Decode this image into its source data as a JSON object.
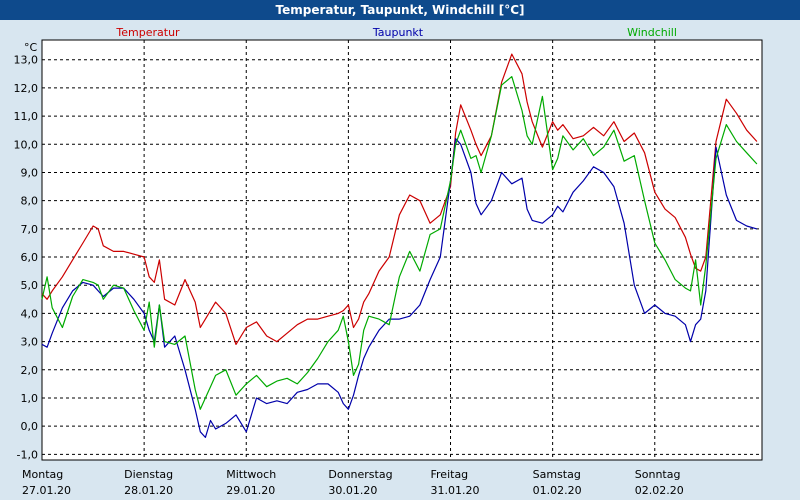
{
  "window": {
    "title": "Temperatur, Taupunkt, Windchill [°C]"
  },
  "chart_data": {
    "type": "line",
    "title": "Temperatur, Taupunkt, Windchill [°C]",
    "ylabel": "°C",
    "ylim": [
      -1.2,
      13.7
    ],
    "xlim": [
      0,
      7.05
    ],
    "grid": true,
    "legend_position": "top",
    "y_ticks": [
      "-1,0",
      "0,0",
      "1,0",
      "2,0",
      "3,0",
      "4,0",
      "5,0",
      "6,0",
      "7,0",
      "8,0",
      "9,0",
      "10,0",
      "11,0",
      "12,0",
      "13,0"
    ],
    "x_ticks": [
      {
        "day": "Montag",
        "date": "27.01.20"
      },
      {
        "day": "Dienstag",
        "date": "28.01.20"
      },
      {
        "day": "Mittwoch",
        "date": "29.01.20"
      },
      {
        "day": "Donnerstag",
        "date": "30.01.20"
      },
      {
        "day": "Freitag",
        "date": "31.01.20"
      },
      {
        "day": "Samstag",
        "date": "01.02.20"
      },
      {
        "day": "Sonntag",
        "date": "02.02.20"
      }
    ],
    "series": [
      {
        "name": "Temperatur",
        "color": "#cc0000",
        "x": [
          0.0,
          0.05,
          0.1,
          0.2,
          0.3,
          0.4,
          0.5,
          0.55,
          0.6,
          0.7,
          0.8,
          0.9,
          1.0,
          1.05,
          1.1,
          1.15,
          1.2,
          1.3,
          1.4,
          1.5,
          1.55,
          1.6,
          1.65,
          1.7,
          1.8,
          1.9,
          2.0,
          2.1,
          2.2,
          2.3,
          2.4,
          2.5,
          2.6,
          2.7,
          2.8,
          2.9,
          2.95,
          3.0,
          3.05,
          3.1,
          3.15,
          3.2,
          3.3,
          3.4,
          3.5,
          3.6,
          3.7,
          3.8,
          3.9,
          4.0,
          4.05,
          4.1,
          4.2,
          4.25,
          4.3,
          4.4,
          4.5,
          4.6,
          4.7,
          4.75,
          4.8,
          4.9,
          5.0,
          5.05,
          5.1,
          5.2,
          5.3,
          5.4,
          5.5,
          5.6,
          5.7,
          5.8,
          5.9,
          6.0,
          6.1,
          6.2,
          6.3,
          6.35,
          6.4,
          6.45,
          6.5,
          6.6,
          6.7,
          6.8,
          6.9,
          7.0
        ],
        "y": [
          4.7,
          4.5,
          4.8,
          5.3,
          5.9,
          6.5,
          7.1,
          7.0,
          6.4,
          6.2,
          6.2,
          6.1,
          6.0,
          5.3,
          5.1,
          5.9,
          4.5,
          4.3,
          5.2,
          4.4,
          3.5,
          3.8,
          4.1,
          4.4,
          4.0,
          2.9,
          3.5,
          3.7,
          3.2,
          3.0,
          3.3,
          3.6,
          3.8,
          3.8,
          3.9,
          4.0,
          4.1,
          4.3,
          3.5,
          3.8,
          4.4,
          4.7,
          5.5,
          6.0,
          7.5,
          8.2,
          8.0,
          7.2,
          7.5,
          8.5,
          10.4,
          11.4,
          10.5,
          10.0,
          9.6,
          10.3,
          12.2,
          13.2,
          12.5,
          11.5,
          10.8,
          9.9,
          10.8,
          10.5,
          10.7,
          10.2,
          10.3,
          10.6,
          10.3,
          10.8,
          10.1,
          10.4,
          9.7,
          8.3,
          7.7,
          7.4,
          6.7,
          6.1,
          5.6,
          5.5,
          6.0,
          10.1,
          11.6,
          11.1,
          10.5,
          10.1
        ]
      },
      {
        "name": "Taupunkt",
        "color": "#0000aa",
        "x": [
          0.0,
          0.05,
          0.1,
          0.2,
          0.3,
          0.4,
          0.5,
          0.55,
          0.6,
          0.7,
          0.8,
          0.9,
          1.0,
          1.05,
          1.1,
          1.15,
          1.2,
          1.3,
          1.4,
          1.5,
          1.55,
          1.6,
          1.65,
          1.7,
          1.8,
          1.9,
          2.0,
          2.1,
          2.2,
          2.3,
          2.4,
          2.5,
          2.6,
          2.7,
          2.8,
          2.9,
          2.95,
          3.0,
          3.05,
          3.1,
          3.15,
          3.2,
          3.3,
          3.4,
          3.5,
          3.6,
          3.7,
          3.8,
          3.9,
          4.0,
          4.05,
          4.1,
          4.2,
          4.25,
          4.3,
          4.4,
          4.5,
          4.6,
          4.7,
          4.75,
          4.8,
          4.9,
          5.0,
          5.05,
          5.1,
          5.2,
          5.3,
          5.4,
          5.5,
          5.6,
          5.7,
          5.8,
          5.9,
          6.0,
          6.1,
          6.2,
          6.3,
          6.35,
          6.4,
          6.45,
          6.5,
          6.6,
          6.7,
          6.8,
          6.9,
          7.0
        ],
        "y": [
          2.9,
          2.8,
          3.3,
          4.2,
          4.8,
          5.1,
          5.0,
          4.8,
          4.6,
          4.9,
          4.9,
          4.5,
          4.0,
          3.4,
          3.0,
          4.3,
          2.8,
          3.2,
          2.0,
          0.6,
          -0.2,
          -0.4,
          0.2,
          -0.1,
          0.1,
          0.4,
          -0.2,
          1.0,
          0.8,
          0.9,
          0.8,
          1.2,
          1.3,
          1.5,
          1.5,
          1.2,
          0.8,
          0.6,
          1.1,
          1.8,
          2.4,
          2.8,
          3.4,
          3.8,
          3.8,
          3.9,
          4.3,
          5.2,
          6.0,
          8.7,
          10.2,
          10.0,
          9.0,
          7.9,
          7.5,
          8.0,
          9.0,
          8.6,
          8.8,
          7.7,
          7.3,
          7.2,
          7.5,
          7.8,
          7.6,
          8.3,
          8.7,
          9.2,
          9.0,
          8.5,
          7.2,
          5.0,
          4.0,
          4.3,
          4.0,
          3.9,
          3.6,
          3.0,
          3.6,
          3.8,
          4.8,
          9.9,
          8.2,
          7.3,
          7.1,
          7.0
        ],
        "_": null
      },
      {
        "name": "Windchill",
        "color": "#00aa00",
        "x": [
          0.0,
          0.05,
          0.1,
          0.2,
          0.3,
          0.4,
          0.5,
          0.55,
          0.6,
          0.7,
          0.8,
          0.9,
          1.0,
          1.05,
          1.1,
          1.15,
          1.2,
          1.3,
          1.4,
          1.5,
          1.55,
          1.6,
          1.65,
          1.7,
          1.8,
          1.9,
          2.0,
          2.1,
          2.2,
          2.3,
          2.4,
          2.5,
          2.6,
          2.7,
          2.8,
          2.9,
          2.95,
          3.0,
          3.05,
          3.1,
          3.15,
          3.2,
          3.3,
          3.4,
          3.5,
          3.6,
          3.7,
          3.8,
          3.9,
          4.0,
          4.05,
          4.1,
          4.2,
          4.25,
          4.3,
          4.4,
          4.5,
          4.6,
          4.7,
          4.75,
          4.8,
          4.9,
          5.0,
          5.05,
          5.1,
          5.2,
          5.3,
          5.4,
          5.5,
          5.6,
          5.7,
          5.8,
          5.9,
          6.0,
          6.1,
          6.2,
          6.3,
          6.35,
          6.4,
          6.45,
          6.5,
          6.6,
          6.7,
          6.8,
          6.9,
          7.0
        ],
        "y": [
          4.5,
          5.3,
          4.2,
          3.5,
          4.6,
          5.2,
          5.1,
          5.0,
          4.5,
          5.0,
          4.9,
          4.1,
          3.4,
          4.4,
          2.8,
          4.3,
          3.0,
          2.9,
          3.2,
          1.3,
          0.6,
          1.0,
          1.4,
          1.8,
          2.0,
          1.1,
          1.5,
          1.8,
          1.4,
          1.6,
          1.7,
          1.5,
          1.9,
          2.4,
          3.0,
          3.4,
          3.9,
          3.0,
          1.8,
          2.2,
          3.4,
          3.9,
          3.8,
          3.6,
          5.3,
          6.2,
          5.5,
          6.8,
          7.0,
          8.7,
          10.0,
          10.5,
          9.5,
          9.6,
          9.0,
          10.3,
          12.1,
          12.4,
          11.2,
          10.3,
          10.0,
          11.7,
          9.1,
          9.5,
          10.3,
          9.8,
          10.2,
          9.6,
          9.9,
          10.5,
          9.4,
          9.6,
          8.0,
          6.5,
          5.9,
          5.2,
          4.9,
          4.8,
          5.9,
          4.3,
          5.7,
          9.5,
          10.7,
          10.1,
          9.7,
          9.3
        ]
      }
    ]
  }
}
